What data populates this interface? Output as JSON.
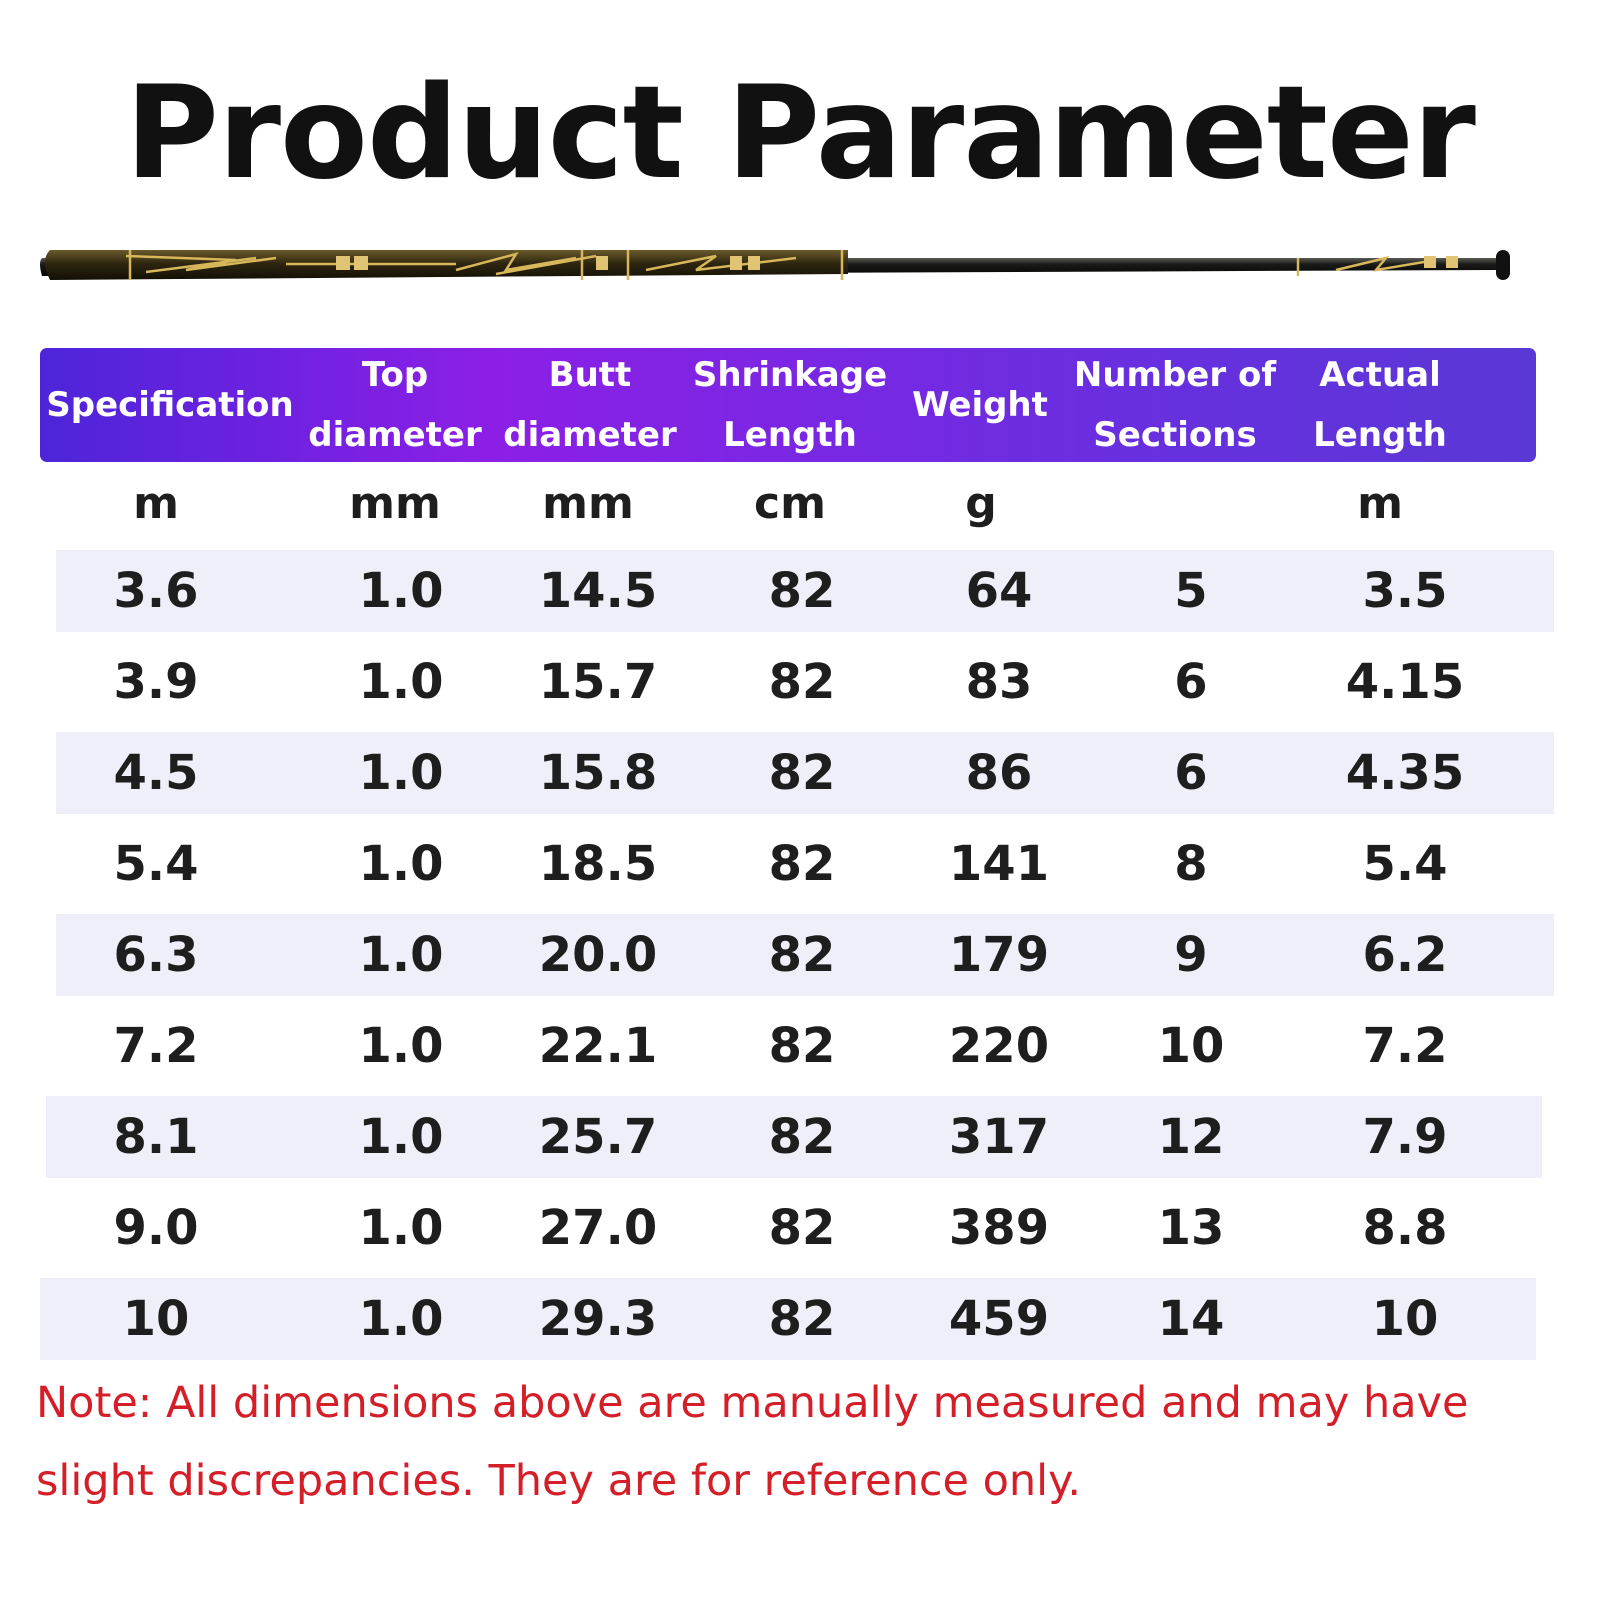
{
  "title": "Product Parameter",
  "colors": {
    "header_gradient_start": "#4d25d9",
    "header_gradient_mid": "#8c1fe6",
    "header_gradient_end": "#5a38d6",
    "row_shade": "#efeff9",
    "note_text": "#d51f28",
    "rod_gold": "#c9a54a"
  },
  "icons": {
    "product_image": "fishing-rod-image"
  },
  "table": {
    "headers": [
      {
        "line1": "Specification",
        "line2": ""
      },
      {
        "line1": "Top",
        "line2": "diameter"
      },
      {
        "line1": "Butt",
        "line2": "diameter"
      },
      {
        "line1": "Shrinkage",
        "line2": "Length"
      },
      {
        "line1": "Weight",
        "line2": ""
      },
      {
        "line1": "Number of",
        "line2": "Sections"
      },
      {
        "line1": "Actual",
        "line2": "Length"
      }
    ],
    "units": [
      "m",
      "mm",
      "mm",
      "cm",
      "g",
      "",
      "m"
    ],
    "rows": [
      [
        "3.6",
        "1.0",
        "14.5",
        "82",
        "64",
        "5",
        "3.5"
      ],
      [
        "3.9",
        "1.0",
        "15.7",
        "82",
        "83",
        "6",
        "4.15"
      ],
      [
        "4.5",
        "1.0",
        "15.8",
        "82",
        "86",
        "6",
        "4.35"
      ],
      [
        "5.4",
        "1.0",
        "18.5",
        "82",
        "141",
        "8",
        "5.4"
      ],
      [
        "6.3",
        "1.0",
        "20.0",
        "82",
        "179",
        "9",
        "6.2"
      ],
      [
        "7.2",
        "1.0",
        "22.1",
        "82",
        "220",
        "10",
        "7.2"
      ],
      [
        "8.1",
        "1.0",
        "25.7",
        "82",
        "317",
        "12",
        "7.9"
      ],
      [
        "9.0",
        "1.0",
        "27.0",
        "82",
        "389",
        "13",
        "8.8"
      ],
      [
        "10",
        "1.0",
        "29.3",
        "82",
        "459",
        "14",
        "10"
      ]
    ]
  },
  "note": "Note: All dimensions above are manually measured and may have slight discrepancies. They are for reference only."
}
